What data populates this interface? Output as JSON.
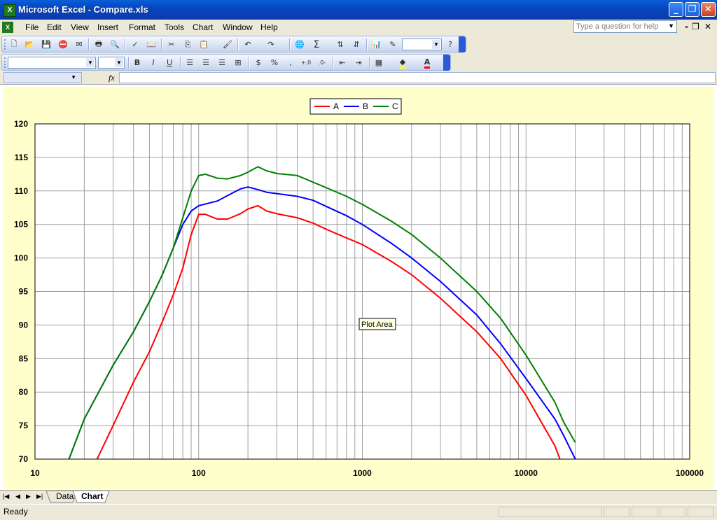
{
  "window": {
    "title": "Microsoft Excel - Compare.xls",
    "min_glyph": "_",
    "max_glyph": "❐",
    "close_glyph": "✕",
    "app_icon": "excel-icon"
  },
  "menu": {
    "items": [
      "File",
      "Edit",
      "View",
      "Insert",
      "Format",
      "Tools",
      "Chart",
      "Window",
      "Help"
    ],
    "help_placeholder": "Type a question for help",
    "mdi_min": "-",
    "mdi_restore": "❐",
    "mdi_close": "✕"
  },
  "toolbar_standard": {
    "icons": [
      "new-icon",
      "open-icon",
      "save-icon",
      "permission-icon",
      "print-preview-icon",
      "print-icon",
      "print-preview-icon",
      "spelling-icon",
      "research-icon",
      "cut-icon",
      "copy-icon",
      "paste-icon",
      "format-painter-icon",
      "undo-icon",
      "redo-icon",
      "hyperlink-icon",
      "autosum-icon",
      "sort-ascending-icon",
      "sort-descending-icon",
      "chart-wizard-icon",
      "drawing-icon",
      "help-icon"
    ],
    "sigma": "Σ",
    "zoom_value": ""
  },
  "toolbar_format": {
    "font_value": "",
    "size_value": "",
    "bold": "B",
    "italic": "I",
    "underline": "U",
    "currency": "$",
    "percent": "%",
    "comma": ",",
    "increase_decimal": "+.0",
    "decrease_decimal": ".0-",
    "font_color_letter": "A",
    "fill_color": "#ffff00",
    "font_color": "#ff0000"
  },
  "formula_bar": {
    "name_box": "",
    "fx": "fx",
    "formula": ""
  },
  "chart_data": {
    "type": "line",
    "x_scale": "log",
    "xlim": [
      10,
      100000
    ],
    "ylim": [
      70,
      120
    ],
    "yticks": [
      70,
      75,
      80,
      85,
      90,
      95,
      100,
      105,
      110,
      115,
      120
    ],
    "xticks": [
      10,
      100,
      1000,
      10000,
      100000
    ],
    "xtick_labels": [
      "10",
      "100",
      "1000",
      "10000",
      "100000"
    ],
    "grid": true,
    "legend_position": "top-center",
    "tooltip": "Plot Area",
    "series": [
      {
        "name": "A",
        "color": "#ff0000",
        "x": [
          20,
          30,
          40,
          50,
          60,
          70,
          80,
          90,
          100,
          110,
          130,
          150,
          180,
          200,
          230,
          260,
          300,
          400,
          500,
          600,
          800,
          1000,
          1500,
          2000,
          3000,
          5000,
          7000,
          10000,
          15000,
          17000
        ],
        "y": [
          66,
          75,
          81.5,
          86,
          90.5,
          94.5,
          98.5,
          103.5,
          106.5,
          106.5,
          105.8,
          105.8,
          106.6,
          107.3,
          107.8,
          107,
          106.6,
          106,
          105.2,
          104.3,
          103,
          102,
          99.5,
          97.5,
          94,
          89,
          85,
          79.5,
          72,
          68.5
        ]
      },
      {
        "name": "B",
        "color": "#0000ff",
        "x": [
          13,
          20,
          30,
          40,
          50,
          60,
          70,
          80,
          90,
          100,
          130,
          150,
          180,
          200,
          230,
          260,
          300,
          400,
          500,
          600,
          800,
          1000,
          1500,
          2000,
          3000,
          5000,
          7000,
          10000,
          15000,
          17000,
          20000
        ],
        "y": [
          64,
          76,
          84,
          89,
          93.5,
          97.5,
          101.5,
          105,
          107,
          107.8,
          108.5,
          109.3,
          110.3,
          110.6,
          110.2,
          109.8,
          109.6,
          109.2,
          108.6,
          107.7,
          106.3,
          105,
          102.2,
          100,
          96.5,
          91.5,
          87.2,
          82,
          76,
          73.5,
          70
        ]
      },
      {
        "name": "C",
        "color": "#008000",
        "x": [
          13,
          20,
          30,
          40,
          50,
          60,
          70,
          80,
          90,
          100,
          110,
          130,
          150,
          180,
          200,
          230,
          260,
          300,
          400,
          500,
          600,
          800,
          1000,
          1500,
          2000,
          3000,
          5000,
          7000,
          10000,
          15000,
          17000,
          20000
        ],
        "y": [
          64,
          76,
          84,
          89,
          93.5,
          97.5,
          101.5,
          106,
          110,
          112.3,
          112.5,
          111.9,
          111.8,
          112.3,
          112.8,
          113.6,
          113,
          112.6,
          112.3,
          111.3,
          110.5,
          109.2,
          108,
          105.5,
          103.5,
          100,
          95,
          91,
          85.5,
          78.5,
          75.5,
          72.5
        ]
      }
    ]
  },
  "sheet_tabs": {
    "nav": [
      "|◀",
      "◀",
      "▶",
      "▶|"
    ],
    "tabs": [
      "Data",
      "Chart"
    ],
    "active": "Chart"
  },
  "status": {
    "text": "Ready"
  }
}
